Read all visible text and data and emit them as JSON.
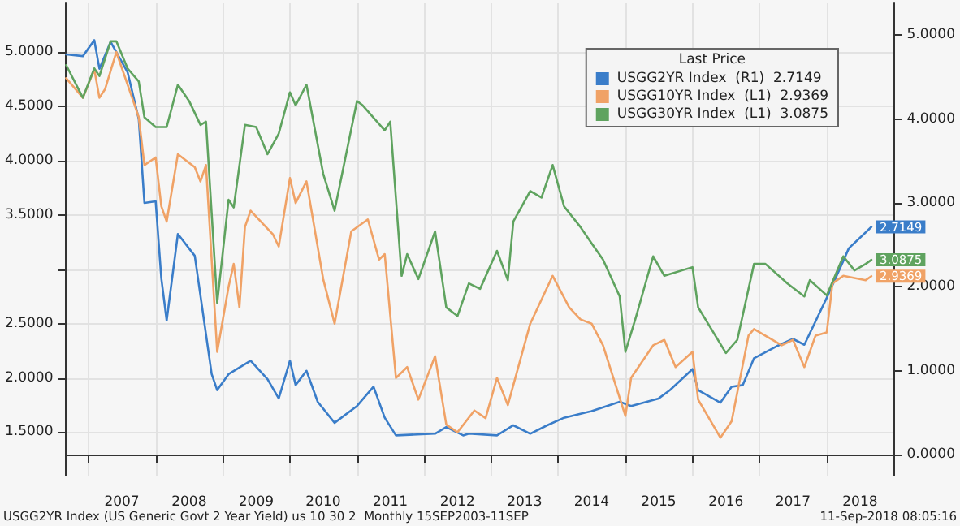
{
  "chart_data": {
    "type": "line",
    "legend_title": "Last Price",
    "annotations": [
      "USGG2YR Index (US Generic Govt 2 Year Yield) us 10 30 2  Monthly 15SEP2003-11SEP",
      "11-Sep-2018 08:05:16"
    ],
    "series": [
      {
        "name": "USGG2YR Index  (R1)  2.7149",
        "color": "#3a7dc9",
        "axis": "y2",
        "x": [
          "2006-09",
          "2006-12",
          "2007-02",
          "2007-03",
          "2007-05",
          "2007-08",
          "2007-10",
          "2007-11",
          "2008-01",
          "2008-02",
          "2008-03",
          "2008-05",
          "2008-08",
          "2008-11",
          "2008-12",
          "2009-02",
          "2009-06",
          "2009-09",
          "2009-11",
          "2010-01",
          "2010-02",
          "2010-04",
          "2010-06",
          "2010-09",
          "2011-01",
          "2011-04",
          "2011-06",
          "2011-08",
          "2012-03",
          "2012-05",
          "2012-08",
          "2012-09",
          "2013-02",
          "2013-05",
          "2013-08",
          "2013-11",
          "2014-02",
          "2014-07",
          "2014-12",
          "2015-02",
          "2015-07",
          "2015-09",
          "2016-01",
          "2016-02",
          "2016-06",
          "2016-08",
          "2016-10",
          "2016-12",
          "2017-04",
          "2017-07",
          "2017-09",
          "2018-01",
          "2018-04",
          "2018-05",
          "2018-08",
          "2018-09"
        ],
        "values": [
          4.77,
          4.75,
          4.94,
          4.6,
          4.92,
          4.56,
          4.0,
          3.0,
          3.02,
          2.1,
          1.6,
          2.63,
          2.37,
          0.96,
          0.77,
          0.96,
          1.12,
          0.9,
          0.67,
          1.12,
          0.83,
          1.0,
          0.63,
          0.38,
          0.58,
          0.81,
          0.44,
          0.23,
          0.25,
          0.33,
          0.23,
          0.25,
          0.23,
          0.35,
          0.25,
          0.35,
          0.44,
          0.52,
          0.63,
          0.58,
          0.67,
          0.77,
          1.02,
          0.77,
          0.62,
          0.81,
          0.83,
          1.15,
          1.29,
          1.38,
          1.31,
          1.87,
          2.31,
          2.46,
          2.65,
          2.7149
        ],
        "value_labels": [
          null,
          null,
          null,
          null,
          null,
          null,
          null,
          null,
          null,
          null,
          null,
          null,
          null,
          null,
          null,
          null,
          null,
          null,
          null,
          null,
          null,
          null,
          null,
          null,
          null,
          null,
          null,
          null,
          null,
          null,
          null,
          null,
          null,
          null,
          null,
          null,
          null,
          null,
          null,
          null,
          null,
          null,
          null,
          null,
          null,
          null,
          null,
          null,
          null,
          null,
          null,
          null,
          null,
          null,
          null,
          "2.7149"
        ]
      },
      {
        "name": "USGG10YR Index  (L1)  2.9369",
        "color": "#f0a266",
        "x": [
          "2006-09",
          "2006-12",
          "2007-02",
          "2007-03",
          "2007-04",
          "2007-06",
          "2007-09",
          "2007-10",
          "2007-11",
          "2008-01",
          "2008-02",
          "2008-03",
          "2008-05",
          "2008-08",
          "2008-09",
          "2008-10",
          "2008-12",
          "2009-02",
          "2009-03",
          "2009-04",
          "2009-05",
          "2009-06",
          "2009-10",
          "2009-11",
          "2010-01",
          "2010-02",
          "2010-04",
          "2010-07",
          "2010-09",
          "2010-12",
          "2011-03",
          "2011-05",
          "2011-06",
          "2011-08",
          "2011-10",
          "2011-12",
          "2012-03",
          "2012-05",
          "2012-07",
          "2012-10",
          "2012-12",
          "2013-02",
          "2013-04",
          "2013-08",
          "2013-12",
          "2014-03",
          "2014-05",
          "2014-07",
          "2014-09",
          "2015-01",
          "2015-02",
          "2015-06",
          "2015-08",
          "2015-10",
          "2016-01",
          "2016-02",
          "2016-06",
          "2016-08",
          "2016-11",
          "2016-12",
          "2017-05",
          "2017-07",
          "2017-09",
          "2017-11",
          "2018-01",
          "2018-02",
          "2018-04",
          "2018-08",
          "2018-09"
        ],
        "values": [
          4.76,
          4.58,
          4.84,
          4.58,
          4.66,
          5.0,
          4.55,
          4.4,
          3.96,
          4.03,
          3.58,
          3.44,
          4.06,
          3.94,
          3.81,
          3.96,
          2.24,
          2.84,
          3.05,
          2.65,
          3.39,
          3.54,
          3.32,
          3.21,
          3.84,
          3.61,
          3.81,
          2.91,
          2.5,
          3.35,
          3.46,
          3.09,
          3.14,
          2.0,
          2.1,
          1.8,
          2.2,
          1.57,
          1.5,
          1.7,
          1.63,
          2.0,
          1.75,
          2.5,
          2.94,
          2.65,
          2.54,
          2.5,
          2.3,
          1.65,
          2.0,
          2.3,
          2.35,
          2.1,
          2.24,
          1.8,
          1.45,
          1.6,
          2.39,
          2.45,
          2.3,
          2.35,
          2.1,
          2.39,
          2.42,
          2.87,
          2.94,
          2.9,
          2.9369
        ],
        "value_labels": [
          null,
          null,
          null,
          null,
          null,
          null,
          null,
          null,
          null,
          null,
          null,
          null,
          null,
          null,
          null,
          null,
          null,
          null,
          null,
          null,
          null,
          null,
          null,
          null,
          null,
          null,
          null,
          null,
          null,
          null,
          null,
          null,
          null,
          null,
          null,
          null,
          null,
          null,
          null,
          null,
          null,
          null,
          null,
          null,
          null,
          null,
          null,
          null,
          null,
          null,
          null,
          null,
          null,
          null,
          null,
          null,
          null,
          null,
          null,
          null,
          null,
          null,
          null,
          null,
          null,
          null,
          null,
          null,
          "2.9369"
        ]
      },
      {
        "name": "USGG30YR Index  (L1)  3.0875",
        "color": "#5fa35f",
        "x": [
          "2006-09",
          "2006-12",
          "2007-02",
          "2007-03",
          "2007-05",
          "2007-06",
          "2007-08",
          "2007-10",
          "2007-11",
          "2008-01",
          "2008-03",
          "2008-05",
          "2008-07",
          "2008-09",
          "2008-10",
          "2008-12",
          "2009-02",
          "2009-03",
          "2009-05",
          "2009-07",
          "2009-09",
          "2009-11",
          "2010-01",
          "2010-02",
          "2010-04",
          "2010-07",
          "2010-09",
          "2011-01",
          "2011-02",
          "2011-06",
          "2011-07",
          "2011-09",
          "2011-10",
          "2011-12",
          "2012-03",
          "2012-05",
          "2012-07",
          "2012-09",
          "2012-11",
          "2013-02",
          "2013-04",
          "2013-05",
          "2013-08",
          "2013-10",
          "2013-12",
          "2014-02",
          "2014-05",
          "2014-07",
          "2014-09",
          "2014-12",
          "2015-01",
          "2015-03",
          "2015-06",
          "2015-08",
          "2016-01",
          "2016-02",
          "2016-07",
          "2016-09",
          "2016-12",
          "2017-02",
          "2017-06",
          "2017-09",
          "2017-10",
          "2018-01",
          "2018-04",
          "2018-06",
          "2018-08",
          "2018-09"
        ],
        "values": [
          4.88,
          4.58,
          4.85,
          4.78,
          5.1,
          5.1,
          4.85,
          4.73,
          4.4,
          4.31,
          4.31,
          4.7,
          4.55,
          4.33,
          4.36,
          2.69,
          3.64,
          3.57,
          4.33,
          4.31,
          4.06,
          4.25,
          4.63,
          4.51,
          4.7,
          3.88,
          3.54,
          4.55,
          4.51,
          4.28,
          4.36,
          2.94,
          3.14,
          2.91,
          3.35,
          2.65,
          2.57,
          2.87,
          2.82,
          3.17,
          2.9,
          3.44,
          3.72,
          3.66,
          3.96,
          3.58,
          3.39,
          3.24,
          3.09,
          2.75,
          2.24,
          2.57,
          3.12,
          2.94,
          3.02,
          2.65,
          2.23,
          2.35,
          3.05,
          3.05,
          2.87,
          2.75,
          2.9,
          2.76,
          3.12,
          2.99,
          3.05,
          3.0875
        ],
        "value_labels": [
          null,
          null,
          null,
          null,
          null,
          null,
          null,
          null,
          null,
          null,
          null,
          null,
          null,
          null,
          null,
          null,
          null,
          null,
          null,
          null,
          null,
          null,
          null,
          null,
          null,
          null,
          null,
          null,
          null,
          null,
          null,
          null,
          null,
          null,
          null,
          null,
          null,
          null,
          null,
          null,
          null,
          null,
          null,
          null,
          null,
          null,
          null,
          null,
          null,
          null,
          null,
          null,
          null,
          null,
          null,
          null,
          null,
          null,
          null,
          null,
          null,
          null,
          null,
          null,
          null,
          null,
          null,
          "3.0875"
        ]
      }
    ],
    "xlim": [
      "2006-09",
      "2019-01"
    ],
    "xticks": [
      {
        "value": "2007",
        "label": null
      },
      {
        "value": "2007-07",
        "label": "2007"
      },
      {
        "value": "2008",
        "label": null
      },
      {
        "value": "2008-07",
        "label": "2008"
      },
      {
        "value": "2009",
        "label": null
      },
      {
        "value": "2009-07",
        "label": "2009"
      },
      {
        "value": "2010",
        "label": null
      },
      {
        "value": "2010-07",
        "label": "2010"
      },
      {
        "value": "2011",
        "label": null
      },
      {
        "value": "2011-07",
        "label": "2011"
      },
      {
        "value": "2012",
        "label": null
      },
      {
        "value": "2012-07",
        "label": "2012"
      },
      {
        "value": "2013",
        "label": null
      },
      {
        "value": "2013-07",
        "label": "2013"
      },
      {
        "value": "2014",
        "label": null
      },
      {
        "value": "2014-07",
        "label": "2014"
      },
      {
        "value": "2015",
        "label": null
      },
      {
        "value": "2015-07",
        "label": "2015"
      },
      {
        "value": "2016",
        "label": null
      },
      {
        "value": "2016-07",
        "label": "2016"
      },
      {
        "value": "2017",
        "label": null
      },
      {
        "value": "2017-07",
        "label": "2017"
      },
      {
        "value": "2018",
        "label": null
      },
      {
        "value": "2018-07",
        "label": "2018"
      },
      {
        "value": "2019",
        "label": null
      }
    ],
    "ylim": [
      1.1,
      5.45
    ],
    "yticks": [
      {
        "value": 1.5,
        "label": "1.5000"
      },
      {
        "value": 2.0,
        "label": "2.0000"
      },
      {
        "value": 2.5,
        "label": "2.5000"
      },
      {
        "value": 3.0,
        "label": null
      },
      {
        "value": 3.5,
        "label": "3.5000"
      },
      {
        "value": 4.0,
        "label": "4.0000"
      },
      {
        "value": 4.5,
        "label": "4.5000"
      },
      {
        "value": 5.0,
        "label": "5.0000"
      }
    ],
    "y2lim": [
      -0.25,
      5.38
    ],
    "y2ticks": [
      {
        "value": 0,
        "label": "0.0000"
      },
      {
        "value": 1,
        "label": "1.0000"
      },
      {
        "value": 2,
        "label": "2.0000"
      },
      {
        "value": 3,
        "label": "3.0000"
      },
      {
        "value": 4,
        "label": "4.0000"
      },
      {
        "value": 5,
        "label": "5.0000"
      }
    ],
    "grid": true,
    "legend": "top right",
    "marker": "none",
    "line_style": "solid"
  }
}
